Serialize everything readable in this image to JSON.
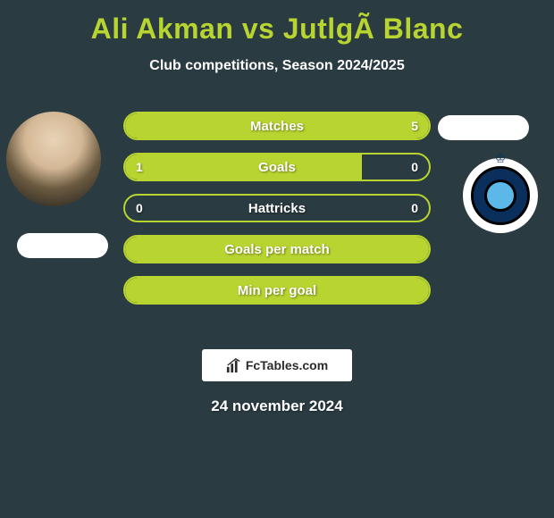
{
  "colors": {
    "background": "#2a3b42",
    "accent": "#b8d430",
    "text": "#ffffff",
    "brand_bg": "#ffffff",
    "brand_text": "#2b2b2b"
  },
  "header": {
    "title": "Ali Akman vs JutlgÃ  Blanc",
    "subtitle": "Club competitions, Season 2024/2025"
  },
  "left_player": {
    "name": "Ali Akman",
    "has_avatar": true,
    "has_flag": true
  },
  "right_player": {
    "name": "JutlgÃ  Blanc",
    "club_logo_colors": {
      "outer": "#ffffff",
      "ring": "#0a2f5c",
      "center": "#5bb8e8",
      "border": "#000000"
    },
    "has_flag": true
  },
  "stats": [
    {
      "label": "Matches",
      "left_value": "",
      "right_value": "5",
      "left_pct": 0,
      "right_pct": 100,
      "show_left": false,
      "show_right": true
    },
    {
      "label": "Goals",
      "left_value": "1",
      "right_value": "0",
      "left_pct": 78,
      "right_pct": 0,
      "show_left": true,
      "show_right": true
    },
    {
      "label": "Hattricks",
      "left_value": "0",
      "right_value": "0",
      "left_pct": 0,
      "right_pct": 0,
      "show_left": true,
      "show_right": true
    },
    {
      "label": "Goals per match",
      "left_value": "",
      "right_value": "",
      "left_pct": 100,
      "right_pct": 100,
      "show_left": false,
      "show_right": false
    },
    {
      "label": "Min per goal",
      "left_value": "",
      "right_value": "",
      "left_pct": 100,
      "right_pct": 100,
      "show_left": false,
      "show_right": false
    }
  ],
  "row_style": {
    "height": 32,
    "border_radius": 16,
    "border_width": 2,
    "gap": 14,
    "label_fontsize": 15,
    "value_fontsize": 14
  },
  "brand": {
    "text": "FcTables.com"
  },
  "footer": {
    "date": "24 november 2024"
  }
}
